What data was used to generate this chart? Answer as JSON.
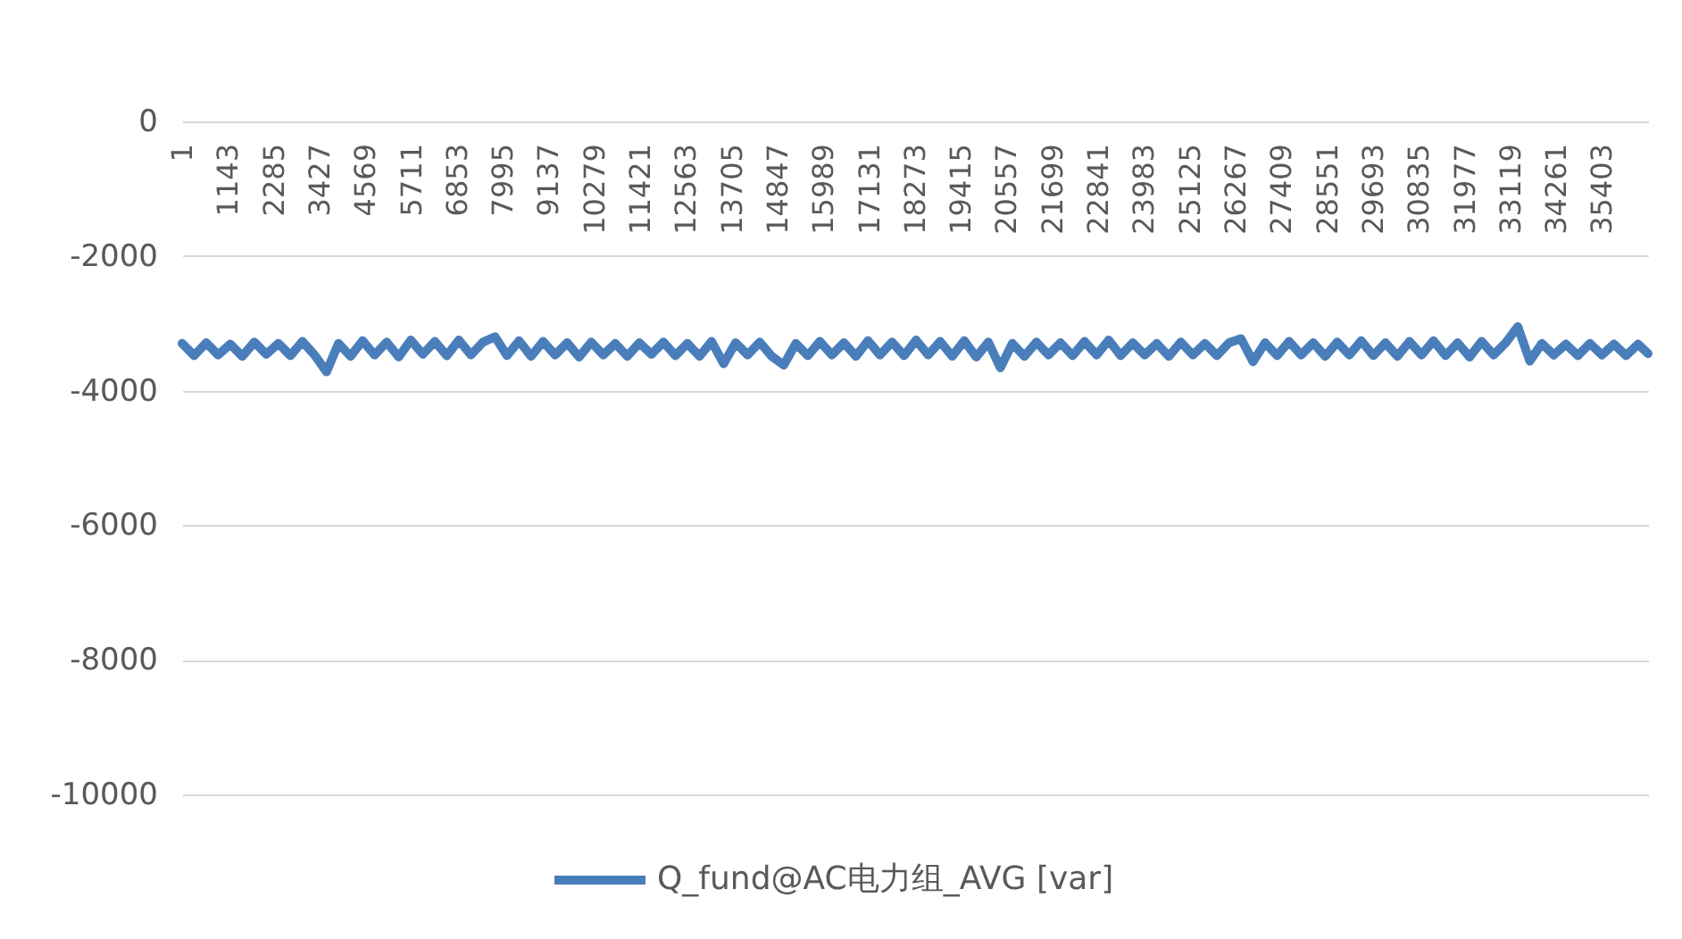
{
  "chart_data": {
    "type": "line",
    "x": [
      1,
      301,
      601,
      901,
      1201,
      1501,
      1801,
      2101,
      2401,
      2701,
      3001,
      3301,
      3601,
      3901,
      4201,
      4501,
      4801,
      5101,
      5401,
      5701,
      6001,
      6301,
      6601,
      6901,
      7201,
      7501,
      7801,
      8101,
      8401,
      8701,
      9001,
      9301,
      9601,
      9901,
      10201,
      10501,
      10801,
      11101,
      11401,
      11701,
      12001,
      12301,
      12601,
      12901,
      13201,
      13501,
      13801,
      14101,
      14401,
      14701,
      15001,
      15301,
      15601,
      15901,
      16201,
      16501,
      16801,
      17101,
      17401,
      17701,
      18001,
      18301,
      18601,
      18901,
      19201,
      19501,
      19801,
      20101,
      20401,
      20701,
      21001,
      21301,
      21601,
      21901,
      22201,
      22501,
      22801,
      23101,
      23401,
      23701,
      24001,
      24301,
      24601,
      24901,
      25201,
      25501,
      25801,
      26101,
      26401,
      26701,
      27001,
      27301,
      27601,
      27901,
      28201,
      28501,
      28801,
      29101,
      29401,
      29701,
      30001,
      30301,
      30601,
      30901,
      31201,
      31501,
      31801,
      32101,
      32401,
      32701,
      33001,
      33301,
      33601,
      33901,
      34201,
      34501,
      34801,
      35101,
      35401,
      35701,
      36001,
      36301,
      36550
    ],
    "series": [
      {
        "name": "Q_fund@AC电力组_AVG [var]",
        "color": "#4a7ebb",
        "values": [
          -3300,
          -3480,
          -3290,
          -3470,
          -3310,
          -3490,
          -3280,
          -3460,
          -3300,
          -3480,
          -3270,
          -3470,
          -3720,
          -3300,
          -3490,
          -3260,
          -3470,
          -3280,
          -3500,
          -3250,
          -3460,
          -3270,
          -3480,
          -3250,
          -3470,
          -3280,
          -3200,
          -3480,
          -3260,
          -3490,
          -3270,
          -3470,
          -3290,
          -3500,
          -3280,
          -3470,
          -3300,
          -3490,
          -3290,
          -3460,
          -3280,
          -3480,
          -3300,
          -3490,
          -3270,
          -3600,
          -3290,
          -3470,
          -3280,
          -3490,
          -3620,
          -3300,
          -3480,
          -3270,
          -3470,
          -3290,
          -3490,
          -3260,
          -3470,
          -3280,
          -3480,
          -3250,
          -3470,
          -3270,
          -3490,
          -3260,
          -3500,
          -3280,
          -3660,
          -3300,
          -3490,
          -3280,
          -3470,
          -3290,
          -3480,
          -3270,
          -3470,
          -3250,
          -3480,
          -3290,
          -3470,
          -3300,
          -3490,
          -3280,
          -3470,
          -3300,
          -3480,
          -3290,
          -3230,
          -3570,
          -3290,
          -3480,
          -3270,
          -3470,
          -3290,
          -3490,
          -3280,
          -3470,
          -3260,
          -3480,
          -3290,
          -3490,
          -3270,
          -3470,
          -3260,
          -3480,
          -3290,
          -3500,
          -3270,
          -3470,
          -3290,
          -3050,
          -3560,
          -3300,
          -3470,
          -3310,
          -3480,
          -3300,
          -3470,
          -3310,
          -3480,
          -3310,
          -3450
        ]
      }
    ],
    "xlim": [
      1,
      36550
    ],
    "xticks": [
      1,
      1143,
      2285,
      3427,
      4569,
      5711,
      6853,
      7995,
      9137,
      10279,
      11421,
      12563,
      13705,
      14847,
      15989,
      17131,
      18273,
      19415,
      20557,
      21699,
      22841,
      23983,
      25125,
      26267,
      27409,
      28551,
      29693,
      30835,
      31977,
      33119,
      34261,
      35403
    ],
    "ylim": [
      -10000,
      0
    ],
    "yticks": [
      0,
      -2000,
      -4000,
      -6000,
      -8000,
      -10000
    ],
    "grid": "y",
    "legend": "bottom"
  }
}
